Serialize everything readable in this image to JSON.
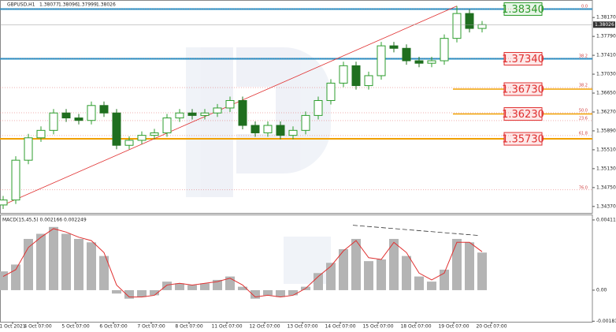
{
  "chart_data": {
    "type": "candlestick",
    "symbol": "GBPUSD,H1",
    "header_values": [
      "1.38077",
      "1.38096",
      "1.37999",
      "1.38026"
    ],
    "xlim": [
      -2,
      374
    ],
    "xticks": [
      {
        "value": 6,
        "label": "1 Oct 2021"
      },
      {
        "value": 22,
        "label": "4 Oct 07:00"
      },
      {
        "value": 46,
        "label": "5 Oct 07:00"
      },
      {
        "value": 70,
        "label": "6 Oct 07:00"
      },
      {
        "value": 94,
        "label": "7 Oct 07:00"
      },
      {
        "value": 118,
        "label": "8 Oct 07:00"
      },
      {
        "value": 142,
        "label": "11 Oct 07:00"
      },
      {
        "value": 166,
        "label": "12 Oct 07:00"
      },
      {
        "value": 190,
        "label": "13 Oct 07:00"
      },
      {
        "value": 214,
        "label": "14 Oct 07:00"
      },
      {
        "value": 238,
        "label": "15 Oct 07:00"
      },
      {
        "value": 262,
        "label": "18 Oct 07:00"
      },
      {
        "value": 286,
        "label": "19 Oct 07:00"
      },
      {
        "value": 310,
        "label": "20 Oct 07:00"
      }
    ],
    "ylim": [
      1.3424,
      1.3849
    ],
    "yticks": [
      {
        "value": 1.3817,
        "label": "1.38170"
      },
      {
        "value": 1.3779,
        "label": "1.37790"
      },
      {
        "value": 1.3741,
        "label": "1.37410"
      },
      {
        "value": 1.3703,
        "label": "1.37030"
      },
      {
        "value": 1.3665,
        "label": "1.36650"
      },
      {
        "value": 1.3627,
        "label": "1.36270"
      },
      {
        "value": 1.3589,
        "label": "1.35890"
      },
      {
        "value": 1.3551,
        "label": "1.35510"
      },
      {
        "value": 1.3513,
        "label": "1.35130"
      },
      {
        "value": 1.3475,
        "label": "1.34750"
      },
      {
        "value": 1.3437,
        "label": "1.34370"
      }
    ],
    "colors": {
      "up": "#2e9e2e",
      "down": "#1f6f1f",
      "axis": "#555555"
    },
    "x": [
      0,
      8,
      16,
      24,
      32,
      40,
      48,
      56,
      64,
      72,
      80,
      88,
      96,
      104,
      112,
      120,
      128,
      136,
      144,
      152,
      160,
      168,
      176,
      184,
      192,
      200,
      208,
      216,
      224,
      232,
      240,
      248,
      256,
      264,
      272,
      280,
      288,
      296,
      304
    ],
    "open": [
      1.344,
      1.345,
      1.353,
      1.3575,
      1.359,
      1.3625,
      1.3615,
      1.361,
      1.364,
      1.3625,
      1.356,
      1.357,
      1.358,
      1.3585,
      1.3615,
      1.3625,
      1.362,
      1.3625,
      1.3635,
      1.365,
      1.36,
      1.3585,
      1.36,
      1.358,
      1.359,
      1.362,
      1.365,
      1.3685,
      1.372,
      1.368,
      1.37,
      1.376,
      1.3755,
      1.373,
      1.3725,
      1.373,
      1.3775,
      1.3825,
      1.3795
    ],
    "high": [
      1.3458,
      1.3538,
      1.3583,
      1.3598,
      1.3633,
      1.3633,
      1.3623,
      1.3648,
      1.3648,
      1.3633,
      1.3578,
      1.3588,
      1.3593,
      1.3623,
      1.3633,
      1.3633,
      1.3633,
      1.3643,
      1.3658,
      1.3658,
      1.3608,
      1.3608,
      1.3608,
      1.3598,
      1.3628,
      1.3658,
      1.3693,
      1.3728,
      1.3728,
      1.3708,
      1.3768,
      1.3768,
      1.3763,
      1.3738,
      1.3738,
      1.3783,
      1.384,
      1.3833,
      1.381
    ],
    "low": [
      1.3432,
      1.3442,
      1.3522,
      1.3567,
      1.3582,
      1.3607,
      1.3602,
      1.3602,
      1.3617,
      1.3552,
      1.3552,
      1.3562,
      1.3572,
      1.3577,
      1.3607,
      1.3612,
      1.3612,
      1.3617,
      1.3627,
      1.3592,
      1.3577,
      1.3577,
      1.3572,
      1.3572,
      1.3582,
      1.3612,
      1.3642,
      1.3677,
      1.3672,
      1.3672,
      1.3692,
      1.3747,
      1.3722,
      1.3717,
      1.3717,
      1.3722,
      1.3767,
      1.3787,
      1.3787
    ],
    "close": [
      1.345,
      1.353,
      1.3575,
      1.359,
      1.3625,
      1.3615,
      1.361,
      1.364,
      1.3625,
      1.356,
      1.357,
      1.358,
      1.3585,
      1.3615,
      1.3625,
      1.362,
      1.3625,
      1.3635,
      1.365,
      1.36,
      1.3585,
      1.36,
      1.358,
      1.359,
      1.362,
      1.365,
      1.3685,
      1.372,
      1.368,
      1.37,
      1.376,
      1.3755,
      1.373,
      1.3725,
      1.373,
      1.3775,
      1.3825,
      1.3795,
      1.38026
    ],
    "current_price": 1.38026,
    "current_price_label": "1.38026",
    "trend_line": {
      "x": [
        0,
        288
      ],
      "y": [
        1.344,
        1.384
      ],
      "color": "#e03030"
    },
    "levels": [
      {
        "value": 1.3834,
        "label": "1.38340",
        "color": "#1e90c8",
        "box": "#2a9a2a"
      },
      {
        "value": 1.3734,
        "label": "1.37340",
        "color": "#1e90c8",
        "box": "#e03030"
      },
      {
        "value": 1.3673,
        "label": "1.36730",
        "color": "#f0a000",
        "box": "#e03030"
      },
      {
        "value": 1.3623,
        "label": "1.36230",
        "color": "#f0a000",
        "box": "#e03030"
      },
      {
        "value": 1.3573,
        "label": "1.35730",
        "color": "#f0a000",
        "box": "#e03030"
      }
    ],
    "fib_levels": [
      {
        "value": 1.38344,
        "label": "0.0"
      },
      {
        "value": 1.37347,
        "label": "38.2"
      },
      {
        "value": 1.36761,
        "label": "38.2"
      },
      {
        "value": 1.36254,
        "label": "50.0"
      },
      {
        "value": 1.36096,
        "label": "23.6"
      },
      {
        "value": 1.35795,
        "label": "61.8"
      },
      {
        "value": 1.34703,
        "label": "76.0"
      }
    ],
    "macd": {
      "title": "MACD(15,45,5) 0.002166 0.002249",
      "ylim": [
        -0.00185,
        0.00443
      ],
      "yticks": [
        {
          "value": 0.00411,
          "label": "0.00411"
        },
        {
          "value": 0,
          "label": "0.00"
        },
        {
          "value": -0.001818,
          "label": "-0.001818"
        }
      ],
      "histogram": [
        0.0011,
        0.0015,
        0.003,
        0.0033,
        0.0037,
        0.0033,
        0.003,
        0.0028,
        0.002,
        -0.0002,
        -0.0005,
        -0.0004,
        -0.0003,
        0.0005,
        0.0004,
        0.0003,
        0.0004,
        0.0006,
        0.0008,
        0.0002,
        -0.0005,
        -0.0003,
        -0.0004,
        -0.0003,
        0.0002,
        0.001,
        0.0016,
        0.0024,
        0.003,
        0.0017,
        0.0018,
        0.003,
        0.002,
        0.0008,
        0.0005,
        0.0012,
        0.003,
        0.0028,
        0.0022
      ],
      "signal": [
        0.0008,
        0.0012,
        0.0025,
        0.0031,
        0.0036,
        0.0034,
        0.0031,
        0.0029,
        0.0022,
        0.0003,
        -0.0004,
        -0.0004,
        -0.0003,
        0.0003,
        0.0004,
        0.0003,
        0.0004,
        0.0005,
        0.0007,
        0.0003,
        -0.0004,
        -0.0003,
        -0.0004,
        -0.0003,
        0.0001,
        0.0008,
        0.0014,
        0.0023,
        0.0029,
        0.0019,
        0.0018,
        0.0028,
        0.0022,
        0.001,
        0.0006,
        0.001,
        0.0028,
        0.0028,
        0.00225
      ],
      "histogram_color": "#b4b4b4",
      "signal_color": "#e03030",
      "divergence_line": {
        "x": [
          222,
          302
        ],
        "y": [
          0.0038,
          0.0032
        ],
        "color": "#333333"
      }
    }
  }
}
